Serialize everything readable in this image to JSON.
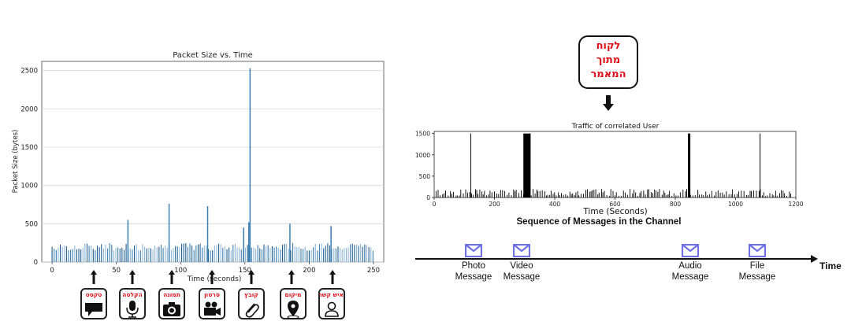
{
  "left_chart": {
    "title": "Packet Size vs. Time",
    "xlabel": "Time (seconds)",
    "ylabel": "Packet Size (bytes)",
    "xticks": [
      "0",
      "50",
      "100",
      "150",
      "200",
      "250"
    ],
    "yticks": [
      "0",
      "500",
      "1000",
      "1500",
      "2000",
      "2500"
    ]
  },
  "right_chart": {
    "title": "Traffic of correlated User",
    "xlabel": "Time (Seconds)",
    "xticks": [
      "0",
      "200",
      "400",
      "600",
      "800",
      "1000",
      "1200"
    ],
    "yticks": [
      "0",
      "500",
      "1000",
      "1500"
    ]
  },
  "callout": {
    "line1": "לקוח",
    "line2": "מתוך",
    "line3": "המאמר"
  },
  "message_types": [
    {
      "label": "טקסט",
      "icon": "chat-bubble-icon"
    },
    {
      "label": "הקלטה",
      "icon": "microphone-icon"
    },
    {
      "label": "תמונה",
      "icon": "camera-icon"
    },
    {
      "label": "סרטון",
      "icon": "video-camera-icon"
    },
    {
      "label": "קובץ",
      "icon": "paperclip-icon"
    },
    {
      "label": "מיקום",
      "icon": "location-pin-icon"
    },
    {
      "label": "איש קשר",
      "icon": "contact-person-icon"
    }
  ],
  "sequence": {
    "title": "Sequence of Messages in the Channel",
    "axis_label": "Time",
    "messages": [
      {
        "line1": "Photo",
        "line2": "Message"
      },
      {
        "line1": "Video",
        "line2": "Message"
      },
      {
        "line1": "Audio",
        "line2": "Message"
      },
      {
        "line1": "File",
        "line2": "Message"
      }
    ]
  },
  "colors": {
    "bar": "#3b7fb3",
    "bar_dark": "#1f5f93",
    "bar_light": "#8fb6d6",
    "callout_text": "#e0101a",
    "envelope": "#6f72e6"
  },
  "chart_data": [
    {
      "type": "bar",
      "title": "Packet Size vs. Time",
      "xlabel": "Time (seconds)",
      "ylabel": "Packet Size (bytes)",
      "xlim": [
        -8,
        258
      ],
      "ylim": [
        0,
        2620
      ],
      "grid": true,
      "baseline_range": [
        150,
        250
      ],
      "spikes": [
        {
          "x": 59,
          "y": 550
        },
        {
          "x": 91,
          "y": 760
        },
        {
          "x": 121,
          "y": 730
        },
        {
          "x": 149,
          "y": 450
        },
        {
          "x": 154,
          "y": 2530
        },
        {
          "x": 153,
          "y": 520
        },
        {
          "x": 185,
          "y": 500
        },
        {
          "x": 217,
          "y": 470
        }
      ]
    },
    {
      "type": "bar",
      "title": "Traffic of correlated User",
      "xlabel": "Time (Seconds)",
      "xlim": [
        0,
        1200
      ],
      "ylim": [
        0,
        1550
      ],
      "baseline_range": [
        30,
        200
      ],
      "spikes": [
        {
          "x": 120,
          "y": 1500
        },
        {
          "x": 300,
          "y": 1500
        },
        {
          "x": 315,
          "y": 1500
        },
        {
          "x": 845,
          "y": 1500
        },
        {
          "x": 1080,
          "y": 1500
        }
      ],
      "blocks": [
        {
          "from": 296,
          "to": 320,
          "y": 1500
        },
        {
          "from": 842,
          "to": 850,
          "y": 1500
        }
      ]
    }
  ]
}
